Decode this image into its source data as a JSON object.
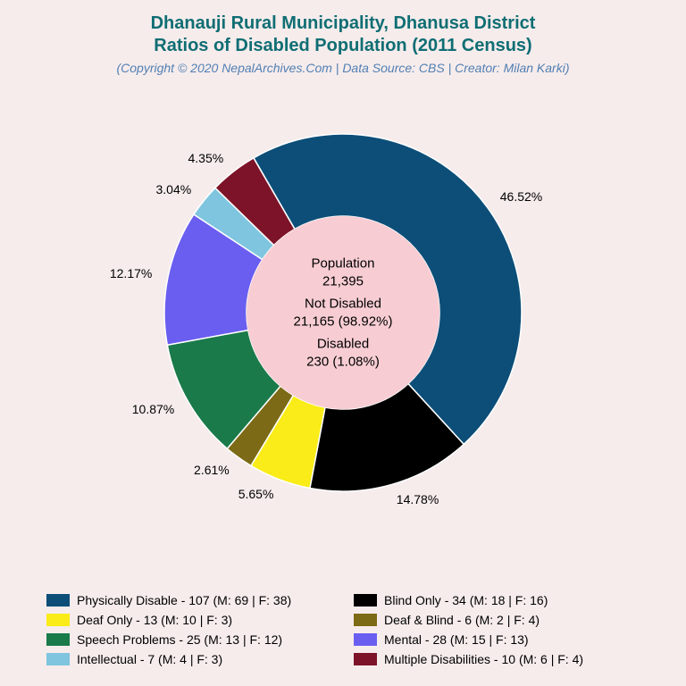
{
  "title": {
    "line1": "Dhanauji Rural Municipality, Dhanusa District",
    "line2": "Ratios of Disabled Population (2011 Census)",
    "subtitle": "(Copyright © 2020 NepalArchives.Com | Data Source: CBS | Creator: Milan Karki)",
    "title_color": "#0f6e73",
    "subtitle_color": "#517fb3",
    "title_fontsize": 20,
    "subtitle_fontsize": 14
  },
  "chart": {
    "type": "pie",
    "background_color": "#f6ecec",
    "outer_radius": 200,
    "inner_radius": 108,
    "center_fill": "#f7cdd3",
    "start_angle_deg": -30,
    "slice_label_fontsize": 14,
    "slices": [
      {
        "label": "Physically Disable",
        "count": 107,
        "m": 69,
        "f": 38,
        "pct": 46.52,
        "color": "#0c4e78",
        "label_text": "46.52%"
      },
      {
        "label": "Blind Only",
        "count": 34,
        "m": 18,
        "f": 16,
        "pct": 14.78,
        "color": "#000000",
        "label_text": "14.78%"
      },
      {
        "label": "Deaf Only",
        "count": 13,
        "m": 10,
        "f": 3,
        "pct": 5.65,
        "color": "#f9ec18",
        "label_text": "5.65%"
      },
      {
        "label": "Deaf & Blind",
        "count": 6,
        "m": 2,
        "f": 4,
        "pct": 2.61,
        "color": "#7d6a16",
        "label_text": "2.61%"
      },
      {
        "label": "Speech Problems",
        "count": 25,
        "m": 13,
        "f": 12,
        "pct": 10.87,
        "color": "#1a7a4a",
        "label_text": "10.87%"
      },
      {
        "label": "Mental",
        "count": 28,
        "m": 15,
        "f": 13,
        "pct": 12.17,
        "color": "#6a5ef1",
        "label_text": "12.17%"
      },
      {
        "label": "Intellectual",
        "count": 7,
        "m": 4,
        "f": 3,
        "pct": 3.04,
        "color": "#7fc5df",
        "label_text": "3.04%"
      },
      {
        "label": "Multiple Disabilities",
        "count": 10,
        "m": 6,
        "f": 4,
        "pct": 4.35,
        "color": "#7d1328",
        "label_text": "4.35%"
      }
    ]
  },
  "center": {
    "population_label": "Population",
    "population_value": "21,395",
    "notdisabled_label": "Not Disabled",
    "notdisabled_value": "21,165 (98.92%)",
    "disabled_label": "Disabled",
    "disabled_value": "230 (1.08%)"
  },
  "legend": {
    "swatch_w": 26,
    "swatch_h": 14,
    "fontsize": 14,
    "items": [
      {
        "text": "Physically Disable - 107 (M: 69 | F: 38)",
        "color": "#0c4e78"
      },
      {
        "text": "Blind Only - 34 (M: 18 | F: 16)",
        "color": "#000000"
      },
      {
        "text": "Deaf Only - 13 (M: 10 | F: 3)",
        "color": "#f9ec18"
      },
      {
        "text": "Deaf & Blind - 6 (M: 2 | F: 4)",
        "color": "#7d6a16"
      },
      {
        "text": "Speech Problems - 25 (M: 13 | F: 12)",
        "color": "#1a7a4a"
      },
      {
        "text": "Mental - 28 (M: 15 | F: 13)",
        "color": "#6a5ef1"
      },
      {
        "text": "Intellectual - 7 (M: 4 | F: 3)",
        "color": "#7fc5df"
      },
      {
        "text": "Multiple Disabilities - 10 (M: 6 | F: 4)",
        "color": "#7d1328"
      }
    ]
  }
}
